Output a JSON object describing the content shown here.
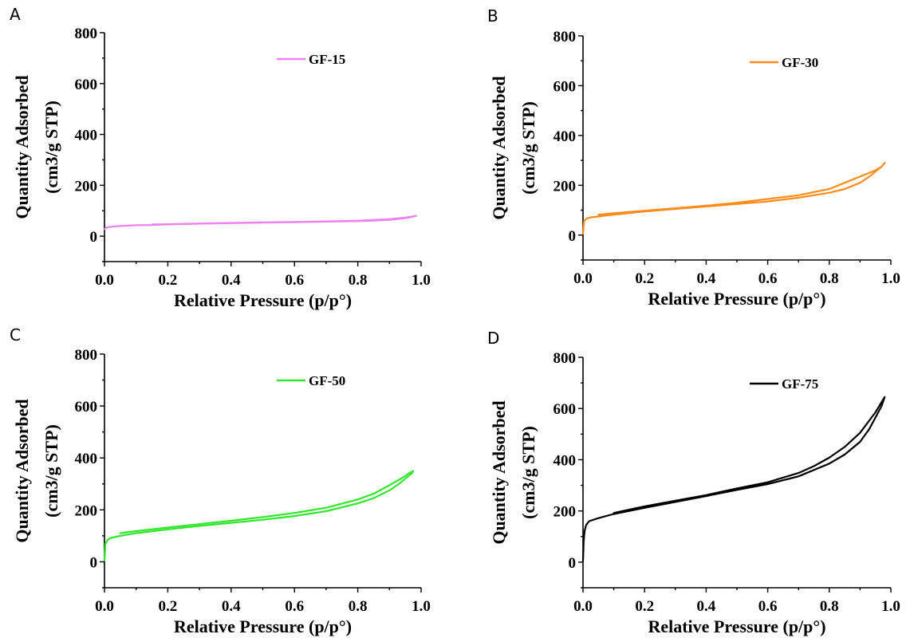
{
  "chart_data": [
    {
      "type": "line",
      "panel_label": "A",
      "xlabel": "Relative Pressure (p/p°)",
      "ylabel_line1": "Quantity Adsorbed",
      "ylabel_line2": "(cm3/g STP)",
      "xlim": [
        0,
        1.0
      ],
      "ylim": [
        -100,
        800
      ],
      "xticks": [
        "0.0",
        "0.2",
        "0.4",
        "0.6",
        "0.8",
        "1.0"
      ],
      "yticks": [
        "0",
        "200",
        "400",
        "600",
        "800"
      ],
      "legend_position": "top-right",
      "series": [
        {
          "name": "GF-15",
          "color": "#ee82ee",
          "x": [
            0.0,
            0.005,
            0.02,
            0.05,
            0.1,
            0.15,
            0.2,
            0.3,
            0.4,
            0.5,
            0.6,
            0.7,
            0.8,
            0.85,
            0.9,
            0.93,
            0.95,
            0.97,
            0.985,
            0.97,
            0.95,
            0.9,
            0.8,
            0.7,
            0.6,
            0.5,
            0.4,
            0.3,
            0.2,
            0.15
          ],
          "y": [
            28,
            33,
            37,
            40,
            43,
            44,
            46,
            49,
            51,
            53,
            55,
            57,
            59,
            61,
            64,
            68,
            71,
            75,
            80,
            77,
            73,
            67,
            61,
            58,
            56,
            54,
            52,
            50,
            47,
            46
          ]
        }
      ]
    },
    {
      "type": "line",
      "panel_label": "B",
      "xlabel": "Relative Pressure (p/p°)",
      "ylabel_line1": "Quantity Adsorbed",
      "ylabel_line2": "(cm3/g STP)",
      "xlim": [
        0,
        1.0
      ],
      "ylim": [
        -100,
        800
      ],
      "xticks": [
        "0.0",
        "0.2",
        "0.4",
        "0.6",
        "0.8",
        "1.0"
      ],
      "yticks": [
        "0",
        "200",
        "400",
        "600",
        "800"
      ],
      "legend_position": "top-right",
      "series": [
        {
          "name": "GF-30",
          "color": "#ff8c1a",
          "x": [
            0.0,
            0.003,
            0.01,
            0.02,
            0.05,
            0.1,
            0.2,
            0.3,
            0.4,
            0.5,
            0.6,
            0.7,
            0.8,
            0.85,
            0.9,
            0.93,
            0.95,
            0.97,
            0.98,
            0.97,
            0.95,
            0.9,
            0.85,
            0.82,
            0.8,
            0.7,
            0.6,
            0.5,
            0.4,
            0.3,
            0.2,
            0.1,
            0.05
          ],
          "y": [
            5,
            55,
            65,
            70,
            75,
            82,
            95,
            105,
            115,
            125,
            135,
            150,
            170,
            185,
            210,
            235,
            255,
            275,
            290,
            275,
            260,
            235,
            210,
            195,
            185,
            160,
            145,
            130,
            118,
            108,
            98,
            88,
            82
          ]
        }
      ]
    },
    {
      "type": "line",
      "panel_label": "C",
      "xlabel": "Relative Pressure (p/p°)",
      "ylabel_line1": "Quantity Adsorbed",
      "ylabel_line2": "(cm3/g STP)",
      "xlim": [
        0,
        1.0
      ],
      "ylim": [
        -100,
        800
      ],
      "xticks": [
        "0.0",
        "0.2",
        "0.4",
        "0.6",
        "0.8",
        "1.0"
      ],
      "yticks": [
        "0",
        "200",
        "400",
        "600",
        "800"
      ],
      "legend_position": "top-right",
      "series": [
        {
          "name": "GF-50",
          "color": "#33e62e",
          "x": [
            0.0,
            0.003,
            0.01,
            0.02,
            0.05,
            0.1,
            0.2,
            0.3,
            0.4,
            0.5,
            0.6,
            0.7,
            0.8,
            0.85,
            0.9,
            0.93,
            0.95,
            0.97,
            0.975,
            0.96,
            0.95,
            0.9,
            0.85,
            0.8,
            0.7,
            0.6,
            0.5,
            0.4,
            0.3,
            0.2,
            0.1,
            0.05
          ],
          "y": [
            5,
            70,
            85,
            92,
            100,
            110,
            125,
            138,
            150,
            162,
            176,
            195,
            225,
            245,
            275,
            300,
            320,
            340,
            350,
            340,
            330,
            295,
            262,
            240,
            208,
            188,
            172,
            158,
            145,
            132,
            118,
            110
          ]
        }
      ]
    },
    {
      "type": "line",
      "panel_label": "D",
      "xlabel": "Relative Pressure (p/p°)",
      "ylabel_line1": "Quantity Adsorbed",
      "ylabel_line2": "(cm3/g STP)",
      "xlim": [
        0,
        1.0
      ],
      "ylim": [
        -100,
        800
      ],
      "xticks": [
        "0.0",
        "0.2",
        "0.4",
        "0.6",
        "0.8",
        "1.0"
      ],
      "yticks": [
        "0",
        "200",
        "400",
        "600",
        "800"
      ],
      "legend_position": "top-right",
      "series": [
        {
          "name": "GF-75",
          "color": "#000000",
          "x": [
            0.0,
            0.002,
            0.005,
            0.01,
            0.02,
            0.05,
            0.1,
            0.2,
            0.3,
            0.4,
            0.5,
            0.6,
            0.7,
            0.8,
            0.85,
            0.9,
            0.93,
            0.95,
            0.97,
            0.98,
            0.97,
            0.95,
            0.9,
            0.85,
            0.8,
            0.75,
            0.7,
            0.6,
            0.5,
            0.4,
            0.3,
            0.2,
            0.1
          ],
          "y": [
            5,
            80,
            120,
            145,
            160,
            172,
            188,
            212,
            235,
            258,
            282,
            305,
            335,
            385,
            420,
            470,
            520,
            565,
            610,
            645,
            625,
            585,
            505,
            450,
            408,
            375,
            348,
            312,
            288,
            262,
            240,
            218,
            192
          ]
        }
      ]
    }
  ]
}
